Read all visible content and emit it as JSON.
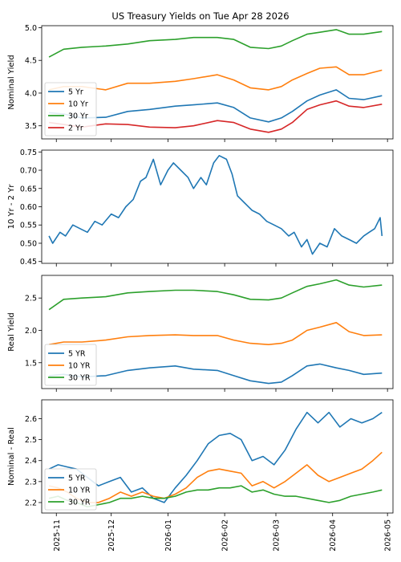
{
  "figure": {
    "title": "US Treasury Yields on Tue Apr 28 2026"
  },
  "colors": {
    "blue": "#1f77b4",
    "orange": "#ff7f0e",
    "green": "#2ca02c",
    "red": "#d62728"
  },
  "chart_data": [
    {
      "type": "line",
      "ylabel": "Nominal Yield",
      "xlim": [
        "2025-10-24",
        "2026-05-04"
      ],
      "ylim": [
        3.3,
        5.03
      ],
      "yticks": [
        3.5,
        4.0,
        4.5,
        5.0
      ],
      "ytick_labels": [
        "3.5",
        "4.0",
        "4.5",
        "5.0"
      ],
      "legend": "lower-left",
      "series": [
        {
          "name": "5 Yr",
          "color": "#1f77b4",
          "x": [
            "2025-10-28",
            "2025-11-05",
            "2025-11-15",
            "2025-11-28",
            "2025-12-10",
            "2025-12-22",
            "2026-01-05",
            "2026-01-15",
            "2026-01-28",
            "2026-02-06",
            "2026-02-15",
            "2026-02-25",
            "2026-03-04",
            "2026-03-10",
            "2026-03-18",
            "2026-03-25",
            "2026-04-03",
            "2026-04-10",
            "2026-04-18",
            "2026-04-28"
          ],
          "y": [
            3.7,
            3.68,
            3.62,
            3.63,
            3.72,
            3.75,
            3.8,
            3.82,
            3.85,
            3.78,
            3.62,
            3.56,
            3.62,
            3.72,
            3.88,
            3.97,
            4.05,
            3.92,
            3.9,
            3.96
          ]
        },
        {
          "name": "10 Yr",
          "color": "#ff7f0e",
          "x": [
            "2025-10-28",
            "2025-11-05",
            "2025-11-15",
            "2025-11-28",
            "2025-12-10",
            "2025-12-22",
            "2026-01-05",
            "2026-01-15",
            "2026-01-28",
            "2026-02-06",
            "2026-02-15",
            "2026-02-25",
            "2026-03-04",
            "2026-03-10",
            "2026-03-18",
            "2026-03-25",
            "2026-04-03",
            "2026-04-10",
            "2026-04-18",
            "2026-04-28"
          ],
          "y": [
            4.05,
            4.1,
            4.1,
            4.05,
            4.15,
            4.15,
            4.18,
            4.22,
            4.28,
            4.2,
            4.08,
            4.05,
            4.1,
            4.2,
            4.3,
            4.38,
            4.4,
            4.28,
            4.28,
            4.35
          ]
        },
        {
          "name": "30 Yr",
          "color": "#2ca02c",
          "x": [
            "2025-10-28",
            "2025-11-05",
            "2025-11-15",
            "2025-11-28",
            "2025-12-10",
            "2025-12-22",
            "2026-01-05",
            "2026-01-15",
            "2026-01-28",
            "2026-02-06",
            "2026-02-15",
            "2026-02-25",
            "2026-03-04",
            "2026-03-10",
            "2026-03-18",
            "2026-03-25",
            "2026-04-03",
            "2026-04-10",
            "2026-04-18",
            "2026-04-28"
          ],
          "y": [
            4.55,
            4.67,
            4.7,
            4.72,
            4.75,
            4.8,
            4.82,
            4.85,
            4.85,
            4.82,
            4.7,
            4.68,
            4.72,
            4.8,
            4.9,
            4.93,
            4.97,
            4.9,
            4.9,
            4.94
          ]
        },
        {
          "name": "2 Yr",
          "color": "#d62728",
          "x": [
            "2025-10-28",
            "2025-11-05",
            "2025-11-15",
            "2025-11-28",
            "2025-12-10",
            "2025-12-22",
            "2026-01-05",
            "2026-01-15",
            "2026-01-28",
            "2026-02-06",
            "2026-02-15",
            "2026-02-25",
            "2026-03-04",
            "2026-03-10",
            "2026-03-18",
            "2026-03-25",
            "2026-04-03",
            "2026-04-10",
            "2026-04-18",
            "2026-04-28"
          ],
          "y": [
            3.55,
            3.52,
            3.48,
            3.53,
            3.52,
            3.48,
            3.47,
            3.5,
            3.58,
            3.55,
            3.45,
            3.4,
            3.45,
            3.55,
            3.75,
            3.82,
            3.88,
            3.8,
            3.78,
            3.83
          ]
        }
      ]
    },
    {
      "type": "line",
      "ylabel": "10 Yr - 2 Yr",
      "xlim": [
        "2025-10-24",
        "2026-05-04"
      ],
      "ylim": [
        0.445,
        0.755
      ],
      "yticks": [
        0.45,
        0.5,
        0.55,
        0.6,
        0.65,
        0.7,
        0.75
      ],
      "ytick_labels": [
        "0.45",
        "0.50",
        "0.55",
        "0.60",
        "0.65",
        "0.70",
        "0.75"
      ],
      "series": [
        {
          "color": "#1f77b4",
          "x": [
            "2025-10-28",
            "2025-10-30",
            "2025-11-03",
            "2025-11-06",
            "2025-11-10",
            "2025-11-14",
            "2025-11-18",
            "2025-11-22",
            "2025-11-26",
            "2025-12-01",
            "2025-12-05",
            "2025-12-09",
            "2025-12-13",
            "2025-12-17",
            "2025-12-20",
            "2025-12-24",
            "2025-12-28",
            "2026-01-01",
            "2026-01-04",
            "2026-01-08",
            "2026-01-12",
            "2026-01-15",
            "2026-01-19",
            "2026-01-22",
            "2026-01-26",
            "2026-01-29",
            "2026-02-02",
            "2026-02-05",
            "2026-02-08",
            "2026-02-12",
            "2026-02-16",
            "2026-02-20",
            "2026-02-24",
            "2026-02-28",
            "2026-03-04",
            "2026-03-08",
            "2026-03-11",
            "2026-03-15",
            "2026-03-18",
            "2026-03-21",
            "2026-03-25",
            "2026-03-29",
            "2026-04-02",
            "2026-04-06",
            "2026-04-10",
            "2026-04-14",
            "2026-04-18",
            "2026-04-21",
            "2026-04-24",
            "2026-04-27",
            "2026-04-28"
          ],
          "y": [
            0.52,
            0.5,
            0.53,
            0.52,
            0.55,
            0.54,
            0.53,
            0.56,
            0.55,
            0.58,
            0.57,
            0.6,
            0.62,
            0.67,
            0.68,
            0.73,
            0.66,
            0.7,
            0.72,
            0.7,
            0.68,
            0.65,
            0.68,
            0.66,
            0.72,
            0.74,
            0.73,
            0.69,
            0.63,
            0.61,
            0.59,
            0.58,
            0.56,
            0.55,
            0.54,
            0.52,
            0.53,
            0.49,
            0.51,
            0.47,
            0.5,
            0.49,
            0.54,
            0.52,
            0.51,
            0.5,
            0.52,
            0.53,
            0.54,
            0.57,
            0.52
          ]
        }
      ]
    },
    {
      "type": "line",
      "ylabel": "Real Yield",
      "xlim": [
        "2025-10-24",
        "2026-05-04"
      ],
      "ylim": [
        1.1,
        2.85
      ],
      "yticks": [
        1.5,
        2.0,
        2.5
      ],
      "ytick_labels": [
        "1.5",
        "2.0",
        "2.5"
      ],
      "legend": "lower-left",
      "series": [
        {
          "name": "5 YR",
          "color": "#1f77b4",
          "x": [
            "2025-10-28",
            "2025-11-05",
            "2025-11-15",
            "2025-11-28",
            "2025-12-10",
            "2025-12-22",
            "2026-01-05",
            "2026-01-15",
            "2026-01-28",
            "2026-02-06",
            "2026-02-15",
            "2026-02-25",
            "2026-03-04",
            "2026-03-10",
            "2026-03-18",
            "2026-03-25",
            "2026-04-03",
            "2026-04-10",
            "2026-04-18",
            "2026-04-28"
          ],
          "y": [
            1.3,
            1.32,
            1.28,
            1.3,
            1.38,
            1.42,
            1.45,
            1.4,
            1.38,
            1.3,
            1.22,
            1.18,
            1.2,
            1.3,
            1.45,
            1.48,
            1.42,
            1.38,
            1.32,
            1.34
          ]
        },
        {
          "name": "10 YR",
          "color": "#ff7f0e",
          "x": [
            "2025-10-28",
            "2025-11-05",
            "2025-11-15",
            "2025-11-28",
            "2025-12-10",
            "2025-12-22",
            "2026-01-05",
            "2026-01-15",
            "2026-01-28",
            "2026-02-06",
            "2026-02-15",
            "2026-02-25",
            "2026-03-04",
            "2026-03-10",
            "2026-03-18",
            "2026-03-25",
            "2026-04-03",
            "2026-04-10",
            "2026-04-18",
            "2026-04-28"
          ],
          "y": [
            1.78,
            1.82,
            1.82,
            1.85,
            1.9,
            1.92,
            1.93,
            1.92,
            1.92,
            1.85,
            1.8,
            1.78,
            1.8,
            1.85,
            2.0,
            2.05,
            2.12,
            1.98,
            1.92,
            1.93
          ]
        },
        {
          "name": "30 YR",
          "color": "#2ca02c",
          "x": [
            "2025-10-28",
            "2025-11-05",
            "2025-11-15",
            "2025-11-28",
            "2025-12-10",
            "2025-12-22",
            "2026-01-05",
            "2026-01-15",
            "2026-01-28",
            "2026-02-06",
            "2026-02-15",
            "2026-02-25",
            "2026-03-04",
            "2026-03-10",
            "2026-03-18",
            "2026-03-25",
            "2026-04-03",
            "2026-04-10",
            "2026-04-18",
            "2026-04-28"
          ],
          "y": [
            2.32,
            2.48,
            2.5,
            2.52,
            2.58,
            2.6,
            2.62,
            2.62,
            2.6,
            2.55,
            2.48,
            2.47,
            2.5,
            2.58,
            2.68,
            2.72,
            2.78,
            2.7,
            2.67,
            2.7
          ]
        }
      ]
    },
    {
      "type": "line",
      "ylabel": "Nominal - Real",
      "xlim": [
        "2025-10-24",
        "2026-05-04"
      ],
      "ylim": [
        2.15,
        2.69
      ],
      "yticks": [
        2.2,
        2.3,
        2.4,
        2.5,
        2.6
      ],
      "ytick_labels": [
        "2.2",
        "2.3",
        "2.4",
        "2.5",
        "2.6"
      ],
      "legend": "lower-left",
      "xticks": [
        "2025-11-01",
        "2025-12-01",
        "2026-01-01",
        "2026-02-01",
        "2026-03-01",
        "2026-04-01",
        "2026-05-01"
      ],
      "xtick_labels": [
        "2025-11",
        "2025-12",
        "2026-01",
        "2026-02",
        "2026-03",
        "2026-04",
        "2026-05"
      ],
      "series": [
        {
          "name": "5 YR",
          "color": "#1f77b4",
          "x": [
            "2025-10-28",
            "2025-11-02",
            "2025-11-07",
            "2025-11-12",
            "2025-11-18",
            "2025-11-24",
            "2025-11-30",
            "2025-12-06",
            "2025-12-12",
            "2025-12-18",
            "2025-12-24",
            "2025-12-30",
            "2026-01-05",
            "2026-01-11",
            "2026-01-17",
            "2026-01-23",
            "2026-01-29",
            "2026-02-04",
            "2026-02-10",
            "2026-02-16",
            "2026-02-22",
            "2026-02-28",
            "2026-03-06",
            "2026-03-12",
            "2026-03-18",
            "2026-03-24",
            "2026-03-30",
            "2026-04-05",
            "2026-04-11",
            "2026-04-17",
            "2026-04-23",
            "2026-04-28"
          ],
          "y": [
            2.36,
            2.38,
            2.37,
            2.36,
            2.32,
            2.28,
            2.3,
            2.32,
            2.25,
            2.27,
            2.22,
            2.2,
            2.27,
            2.33,
            2.4,
            2.48,
            2.52,
            2.53,
            2.5,
            2.4,
            2.42,
            2.38,
            2.45,
            2.55,
            2.63,
            2.58,
            2.63,
            2.56,
            2.6,
            2.58,
            2.6,
            2.63
          ]
        },
        {
          "name": "10 YR",
          "color": "#ff7f0e",
          "x": [
            "2025-10-28",
            "2025-11-02",
            "2025-11-07",
            "2025-11-12",
            "2025-11-18",
            "2025-11-24",
            "2025-11-30",
            "2025-12-06",
            "2025-12-12",
            "2025-12-18",
            "2025-12-24",
            "2025-12-30",
            "2026-01-05",
            "2026-01-11",
            "2026-01-17",
            "2026-01-23",
            "2026-01-29",
            "2026-02-04",
            "2026-02-10",
            "2026-02-16",
            "2026-02-22",
            "2026-02-28",
            "2026-03-06",
            "2026-03-12",
            "2026-03-18",
            "2026-03-24",
            "2026-03-30",
            "2026-04-05",
            "2026-04-11",
            "2026-04-17",
            "2026-04-23",
            "2026-04-28"
          ],
          "y": [
            2.28,
            2.27,
            2.25,
            2.22,
            2.2,
            2.2,
            2.22,
            2.25,
            2.23,
            2.25,
            2.23,
            2.22,
            2.24,
            2.27,
            2.32,
            2.35,
            2.36,
            2.35,
            2.34,
            2.28,
            2.3,
            2.27,
            2.3,
            2.34,
            2.38,
            2.33,
            2.3,
            2.32,
            2.34,
            2.36,
            2.4,
            2.44
          ]
        },
        {
          "name": "30 YR",
          "color": "#2ca02c",
          "x": [
            "2025-10-28",
            "2025-11-02",
            "2025-11-07",
            "2025-11-12",
            "2025-11-18",
            "2025-11-24",
            "2025-11-30",
            "2025-12-06",
            "2025-12-12",
            "2025-12-18",
            "2025-12-24",
            "2025-12-30",
            "2026-01-05",
            "2026-01-11",
            "2026-01-17",
            "2026-01-23",
            "2026-01-29",
            "2026-02-04",
            "2026-02-10",
            "2026-02-16",
            "2026-02-22",
            "2026-02-28",
            "2026-03-06",
            "2026-03-12",
            "2026-03-18",
            "2026-03-24",
            "2026-03-30",
            "2026-04-05",
            "2026-04-11",
            "2026-04-17",
            "2026-04-23",
            "2026-04-28"
          ],
          "y": [
            2.22,
            2.23,
            2.21,
            2.2,
            2.18,
            2.19,
            2.2,
            2.22,
            2.22,
            2.23,
            2.22,
            2.22,
            2.23,
            2.25,
            2.26,
            2.26,
            2.27,
            2.27,
            2.28,
            2.25,
            2.26,
            2.24,
            2.23,
            2.23,
            2.22,
            2.21,
            2.2,
            2.21,
            2.23,
            2.24,
            2.25,
            2.26
          ]
        }
      ]
    }
  ]
}
